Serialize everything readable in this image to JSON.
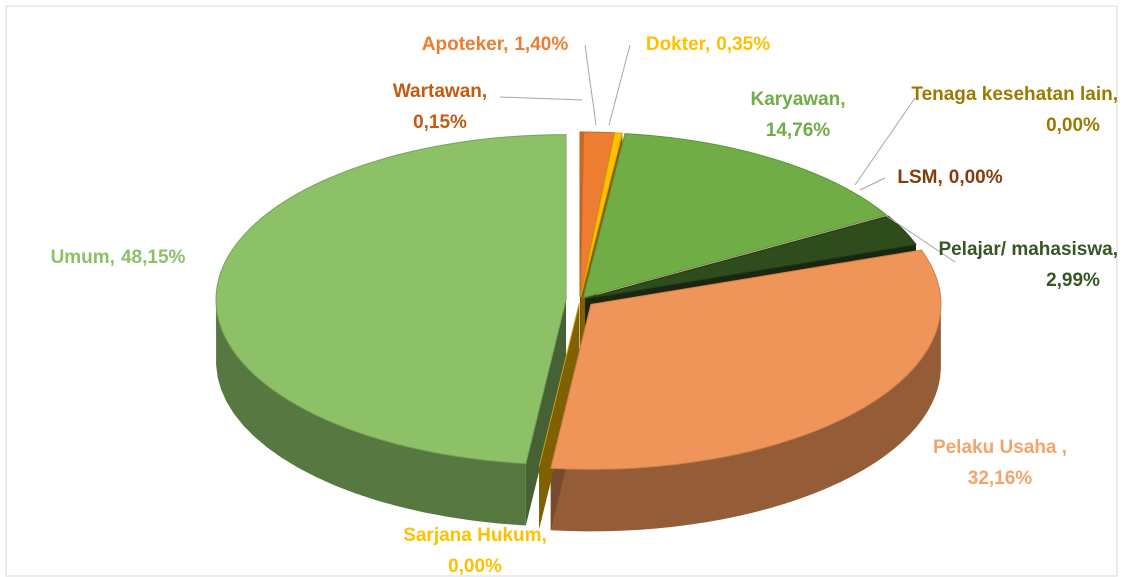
{
  "chart_data": {
    "type": "pie3d",
    "categories": [
      "Wartawan,",
      "Apoteker,",
      "Dokter,",
      "Karyawan,",
      "Tenaga kesehatan lain,",
      "LSM,",
      "Pelajar/ mahasiswa,",
      "Pelaku Usaha ,",
      "Sarjana Hukum,",
      "Umum,"
    ],
    "values": [
      0.15,
      1.4,
      0.35,
      14.76,
      0.0,
      0.0,
      2.99,
      32.16,
      0.0,
      48.15
    ],
    "value_labels": [
      "0,15%",
      "1,40%",
      "0,35%",
      "14,76%",
      "0,00%",
      "0,00%",
      "2,99%",
      "32,16%",
      "0,00%",
      "48,15%"
    ],
    "colors": [
      "#d8691f",
      "#ed7d31",
      "#ffc000",
      "#70ad47",
      "#8a6d00",
      "#843c0c",
      "#2f4d1c",
      "#f0955a",
      "#ffc000",
      "#8cc168"
    ],
    "label_colors": [
      "#c55a11",
      "#ed7d31",
      "#ffc000",
      "#70ad47",
      "#9c7a00",
      "#843c0c",
      "#375623",
      "#f4a46a",
      "#ffc000",
      "#8cc168"
    ]
  }
}
